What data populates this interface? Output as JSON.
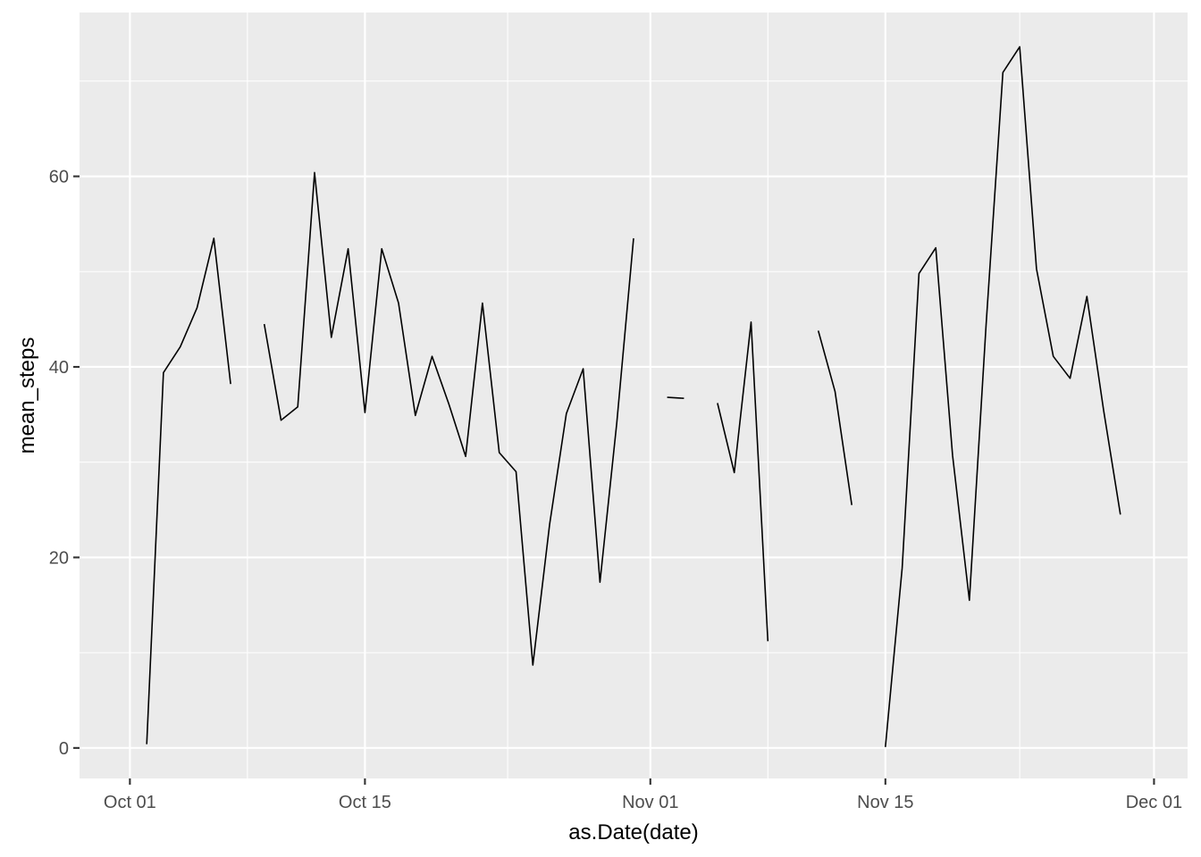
{
  "chart_data": {
    "type": "line",
    "xlabel": "as.Date(date)",
    "ylabel": "mean_steps",
    "x_ticks": [
      {
        "label": "Oct 01",
        "date": "2012-10-01"
      },
      {
        "label": "Oct 15",
        "date": "2012-10-15"
      },
      {
        "label": "Nov 01",
        "date": "2012-11-01"
      },
      {
        "label": "Nov 15",
        "date": "2012-11-15"
      },
      {
        "label": "Dec 01",
        "date": "2012-12-01"
      }
    ],
    "y_ticks": [
      0,
      20,
      40,
      60
    ],
    "xlim": [
      "2012-09-28",
      "2012-12-03"
    ],
    "ylim": [
      -3.2,
      77.2
    ],
    "grid": true,
    "colors": {
      "panel": "#ebebeb",
      "grid": "#ffffff",
      "line": "#000000",
      "tick_label": "#4d4d4d"
    },
    "series": [
      {
        "dates": [
          "2012-10-01",
          "2012-10-02",
          "2012-10-03",
          "2012-10-04",
          "2012-10-05",
          "2012-10-06",
          "2012-10-07",
          "2012-10-08",
          "2012-10-09",
          "2012-10-10",
          "2012-10-11",
          "2012-10-12",
          "2012-10-13",
          "2012-10-14",
          "2012-10-15",
          "2012-10-16",
          "2012-10-17",
          "2012-10-18",
          "2012-10-19",
          "2012-10-20",
          "2012-10-21",
          "2012-10-22",
          "2012-10-23",
          "2012-10-24",
          "2012-10-25",
          "2012-10-26",
          "2012-10-27",
          "2012-10-28",
          "2012-10-29",
          "2012-10-30",
          "2012-10-31",
          "2012-11-01",
          "2012-11-02",
          "2012-11-03",
          "2012-11-04",
          "2012-11-05",
          "2012-11-06",
          "2012-11-07",
          "2012-11-08",
          "2012-11-09",
          "2012-11-10",
          "2012-11-11",
          "2012-11-12",
          "2012-11-13",
          "2012-11-14",
          "2012-11-15",
          "2012-11-16",
          "2012-11-17",
          "2012-11-18",
          "2012-11-19",
          "2012-11-20",
          "2012-11-21",
          "2012-11-22",
          "2012-11-23",
          "2012-11-24",
          "2012-11-25",
          "2012-11-26",
          "2012-11-27",
          "2012-11-28",
          "2012-11-29",
          "2012-11-30"
        ],
        "values": [
          null,
          0.4,
          39.4,
          42.1,
          46.2,
          53.5,
          38.2,
          null,
          44.5,
          34.4,
          35.8,
          60.4,
          43.1,
          52.4,
          35.2,
          52.4,
          46.7,
          34.9,
          41.1,
          36.1,
          30.6,
          46.7,
          31.0,
          29.0,
          8.7,
          23.5,
          35.1,
          39.8,
          17.4,
          34.1,
          53.5,
          null,
          36.8,
          36.7,
          null,
          36.2,
          28.9,
          44.7,
          11.2,
          null,
          null,
          43.8,
          37.4,
          25.5,
          null,
          0.1,
          18.9,
          49.8,
          52.5,
          30.7,
          15.5,
          44.4,
          70.9,
          73.6,
          50.3,
          41.1,
          38.8,
          47.4,
          35.4,
          24.5,
          null
        ]
      }
    ]
  }
}
